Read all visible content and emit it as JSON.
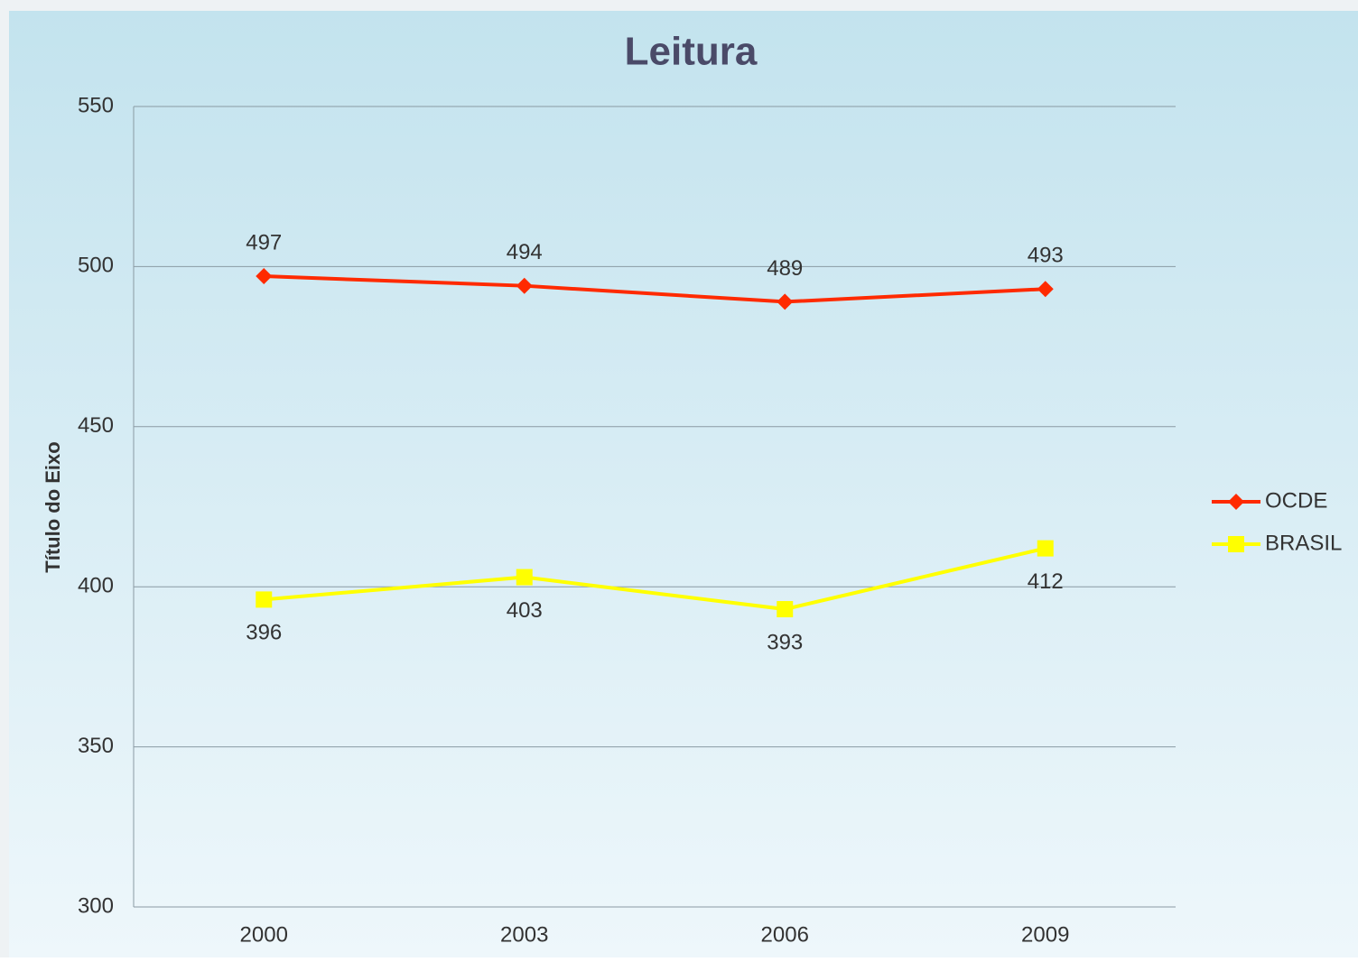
{
  "chart_data": {
    "type": "line",
    "title": "Leitura",
    "y_label": "Título do Eixo",
    "categories": [
      "2000",
      "2003",
      "2006",
      "2009"
    ],
    "series": [
      {
        "name": "OCDE",
        "color": "#ff2a00",
        "marker": "diamond",
        "label_position": "above",
        "values": [
          497,
          494,
          489,
          493
        ]
      },
      {
        "name": "BRASIL",
        "color": "#ffff00",
        "marker": "square",
        "label_position": "below",
        "values": [
          396,
          403,
          393,
          412
        ]
      }
    ],
    "ylim": [
      300,
      550
    ],
    "yticks": [
      300,
      350,
      400,
      450,
      500,
      550
    ],
    "grid": true,
    "legend": "right"
  }
}
